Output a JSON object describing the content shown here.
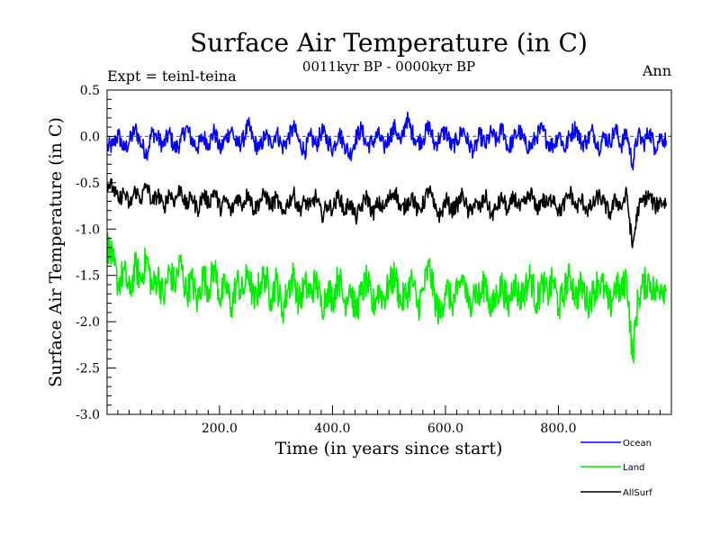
{
  "chart_data": {
    "type": "line",
    "title": "Surface Air Temperature (in C)",
    "subtitle": "0011kyr BP - 0000kyr BP",
    "left_label": "Expt = teinl-teina",
    "right_label": "Ann",
    "xlabel": "Time (in years since start)",
    "ylabel": "Surface Air Temperature (in C)",
    "xlim": [
      1,
      1000
    ],
    "ylim": [
      -3.0,
      0.5
    ],
    "x_ticks": [
      200,
      400,
      600,
      800
    ],
    "x_tick_labels": [
      "200.0",
      "400.0",
      "600.0",
      "800.0"
    ],
    "y_ticks": [
      0.5,
      0.0,
      -0.5,
      -1.0,
      -1.5,
      -2.0,
      -2.5,
      -3.0
    ],
    "y_tick_labels": [
      "0.5",
      "0.0",
      "-0.5",
      "-1.0",
      "-1.5",
      "-2.0",
      "-2.5",
      "-3.0"
    ],
    "reference_line": 0.0,
    "series": [
      {
        "name": "Ocean",
        "color": "#0000ff",
        "x_start": 1,
        "x_step": 10,
        "values": [
          -0.12,
          -0.1,
          0.02,
          -0.15,
          -0.05,
          0.08,
          -0.08,
          -0.18,
          0.05,
          -0.02,
          -0.1,
          0.04,
          -0.14,
          -0.06,
          0.1,
          -0.04,
          -0.12,
          0.0,
          -0.08,
          0.06,
          -0.15,
          -0.02,
          0.08,
          -0.1,
          -0.05,
          0.12,
          -0.06,
          -0.14,
          0.02,
          -0.08,
          0.05,
          -0.12,
          -0.03,
          0.1,
          -0.06,
          -0.16,
          0.0,
          -0.1,
          0.06,
          -0.04,
          -0.14,
          0.04,
          -0.08,
          -0.2,
          -0.02,
          0.08,
          -0.1,
          -0.06,
          0.02,
          -0.12,
          0.0,
          0.1,
          -0.08,
          0.2,
          0.04,
          -0.06,
          -0.02,
          0.12,
          -0.1,
          0.0,
          0.06,
          -0.12,
          -0.04,
          0.08,
          -0.08,
          -0.16,
          0.02,
          -0.1,
          0.04,
          -0.06,
          0.1,
          -0.14,
          -0.02,
          0.06,
          -0.08,
          -0.12,
          0.0,
          0.08,
          -0.06,
          -0.1,
          0.04,
          -0.14,
          0.02,
          0.1,
          -0.08,
          -0.04,
          0.06,
          -0.12,
          0.0,
          -0.06,
          0.08,
          -0.1,
          0.04,
          -0.3,
          0.02,
          -0.08,
          0.06,
          -0.12,
          0.0,
          -0.05
        ]
      },
      {
        "name": "Land",
        "color": "#00ee00",
        "x_start": 1,
        "x_step": 10,
        "values": [
          -1.15,
          -1.35,
          -1.6,
          -1.45,
          -1.7,
          -1.4,
          -1.55,
          -1.3,
          -1.65,
          -1.5,
          -1.75,
          -1.45,
          -1.6,
          -1.35,
          -1.7,
          -1.55,
          -1.8,
          -1.5,
          -1.65,
          -1.4,
          -1.75,
          -1.6,
          -1.85,
          -1.55,
          -1.7,
          -1.45,
          -1.8,
          -1.6,
          -1.5,
          -1.75,
          -1.55,
          -1.9,
          -1.65,
          -1.5,
          -1.8,
          -1.6,
          -1.7,
          -1.55,
          -1.85,
          -1.65,
          -1.75,
          -1.5,
          -1.8,
          -1.6,
          -1.9,
          -1.7,
          -1.55,
          -1.85,
          -1.65,
          -1.75,
          -1.6,
          -1.5,
          -1.8,
          -1.7,
          -1.55,
          -1.85,
          -1.65,
          -1.4,
          -1.75,
          -1.95,
          -1.6,
          -1.8,
          -1.7,
          -1.5,
          -1.85,
          -1.65,
          -1.75,
          -1.55,
          -1.9,
          -1.7,
          -1.6,
          -1.85,
          -1.55,
          -1.75,
          -1.65,
          -1.5,
          -1.8,
          -1.6,
          -1.7,
          -1.55,
          -1.85,
          -1.65,
          -1.5,
          -1.75,
          -1.6,
          -1.8,
          -1.7,
          -1.55,
          -1.65,
          -1.85,
          -1.6,
          -1.7,
          -1.5,
          -2.4,
          -1.75,
          -1.6,
          -1.55,
          -1.7,
          -1.6,
          -1.65
        ]
      },
      {
        "name": "AllSurf",
        "color": "#000000",
        "x_start": 1,
        "x_step": 10,
        "values": [
          -0.5,
          -0.55,
          -0.7,
          -0.6,
          -0.75,
          -0.58,
          -0.68,
          -0.52,
          -0.72,
          -0.62,
          -0.78,
          -0.6,
          -0.7,
          -0.55,
          -0.76,
          -0.64,
          -0.8,
          -0.62,
          -0.72,
          -0.58,
          -0.78,
          -0.68,
          -0.82,
          -0.64,
          -0.74,
          -0.6,
          -0.8,
          -0.7,
          -0.62,
          -0.76,
          -0.66,
          -0.84,
          -0.72,
          -0.62,
          -0.8,
          -0.7,
          -0.76,
          -0.64,
          -0.86,
          -0.74,
          -0.78,
          -0.62,
          -0.82,
          -0.7,
          -0.88,
          -0.76,
          -0.64,
          -0.84,
          -0.72,
          -0.78,
          -0.66,
          -0.58,
          -0.8,
          -0.74,
          -0.64,
          -0.82,
          -0.72,
          -0.56,
          -0.78,
          -0.86,
          -0.68,
          -0.8,
          -0.74,
          -0.62,
          -0.84,
          -0.72,
          -0.78,
          -0.64,
          -0.86,
          -0.76,
          -0.66,
          -0.82,
          -0.64,
          -0.78,
          -0.72,
          -0.6,
          -0.8,
          -0.68,
          -0.74,
          -0.64,
          -0.82,
          -0.72,
          -0.6,
          -0.78,
          -0.68,
          -0.8,
          -0.74,
          -0.64,
          -0.72,
          -0.84,
          -0.68,
          -0.76,
          -0.62,
          -1.2,
          -0.78,
          -0.68,
          -0.64,
          -0.76,
          -0.7,
          -0.72
        ]
      }
    ],
    "legend": [
      {
        "label": "Ocean",
        "color": "#0000ff"
      },
      {
        "label": "Land",
        "color": "#00ee00"
      },
      {
        "label": "AllSurf",
        "color": "#000000"
      }
    ]
  }
}
